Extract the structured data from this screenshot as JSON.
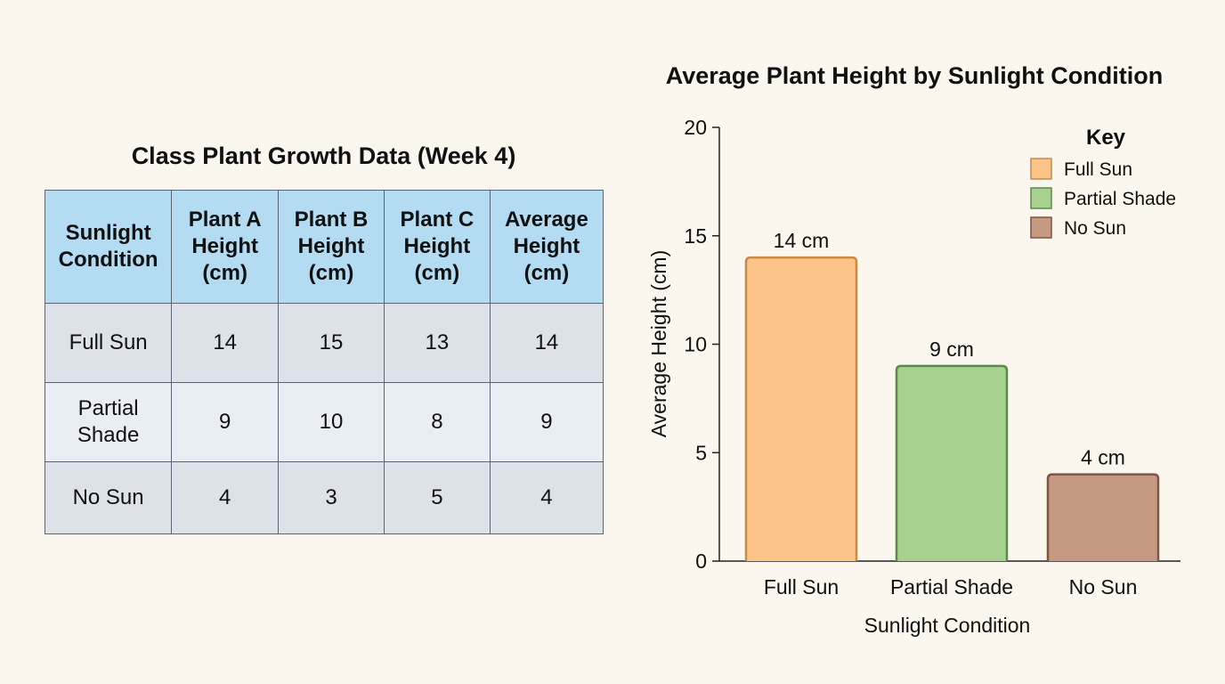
{
  "table": {
    "title": "Class Plant Growth Data (Week 4)",
    "headers": [
      "Sunlight Condition",
      "Plant A Height (cm)",
      "Plant B Height (cm)",
      "Plant C Height (cm)",
      "Average Height (cm)"
    ],
    "rows": [
      [
        "Full Sun",
        "14",
        "15",
        "13",
        "14"
      ],
      [
        "Partial Shade",
        "9",
        "10",
        "8",
        "9"
      ],
      [
        "No Sun",
        "4",
        "3",
        "5",
        "4"
      ]
    ]
  },
  "chart_data": {
    "type": "bar",
    "title": "Average Plant Height by Sunlight Condition",
    "xlabel": "Sunlight Condition",
    "ylabel": "Average Height (cm)",
    "categories": [
      "Full Sun",
      "Partial Shade",
      "No Sun"
    ],
    "values": [
      14,
      9,
      4
    ],
    "data_labels": [
      "14 cm",
      "9 cm",
      "4 cm"
    ],
    "ylim": [
      0,
      20
    ],
    "yticks": [
      0,
      5,
      10,
      15,
      20
    ],
    "grid": false,
    "colors": [
      {
        "fill": "#fdc48a",
        "stroke": "#c98a45"
      },
      {
        "fill": "#a7d18e",
        "stroke": "#5b8a4c"
      },
      {
        "fill": "#c69a82",
        "stroke": "#7e5543"
      }
    ],
    "legend": {
      "title": "Key",
      "position": "top-right",
      "entries": [
        "Full Sun",
        "Partial Shade",
        "No Sun"
      ]
    }
  }
}
